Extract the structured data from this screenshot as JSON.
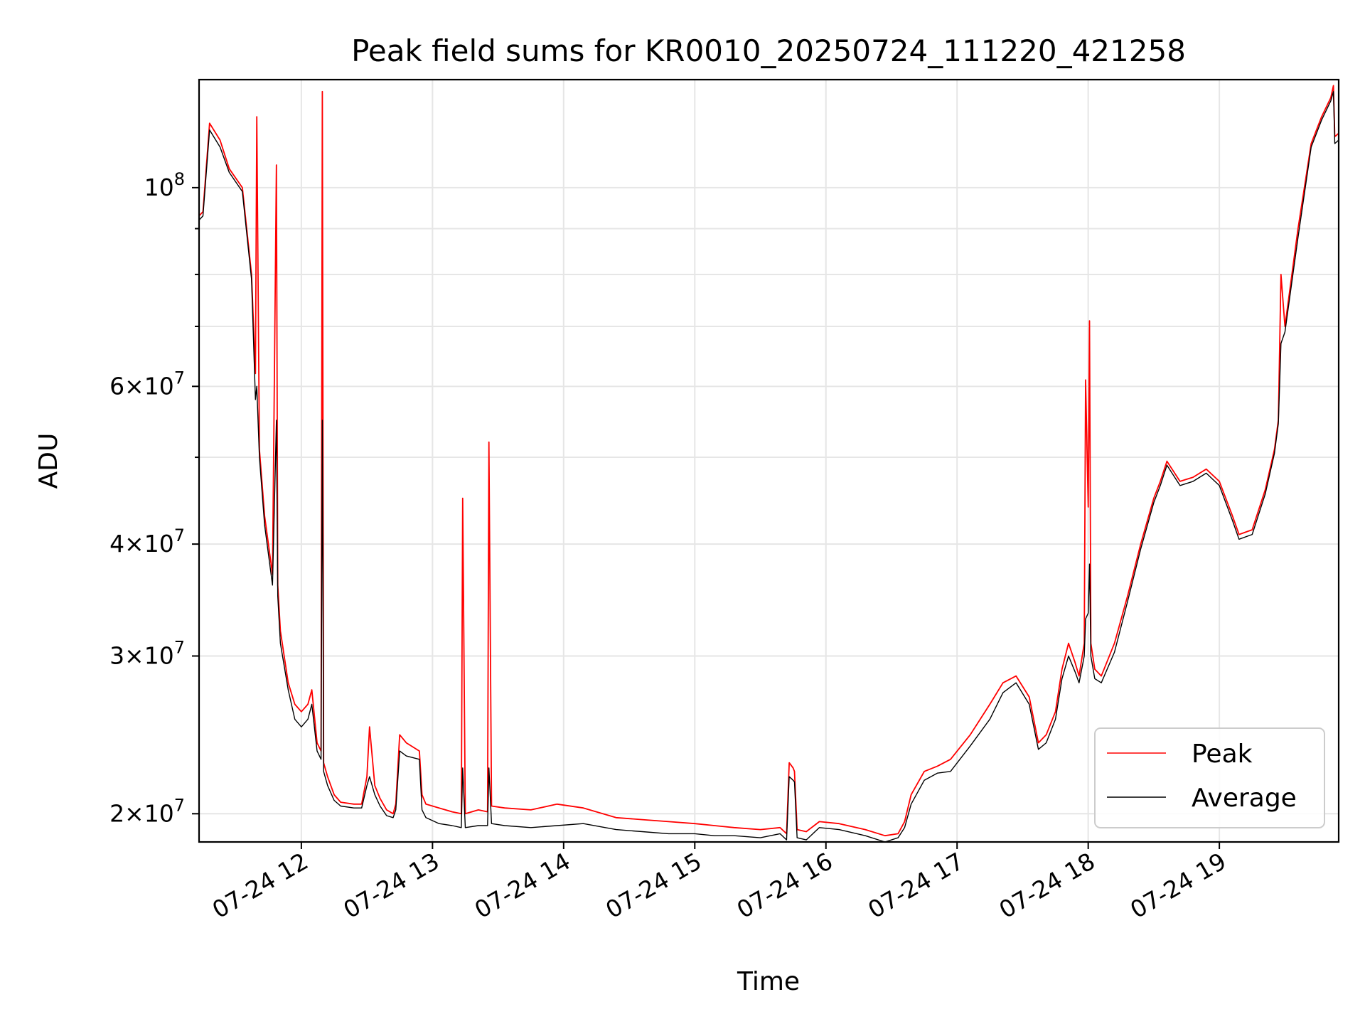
{
  "chart_data": {
    "type": "line",
    "title": "Peak field sums for KR0010_20250724_111220_421258",
    "xlabel": "Time",
    "ylabel": "ADU",
    "x_unit": "hours on 2025-07-24",
    "xlim": [
      11.22,
      19.91
    ],
    "ylim": [
      18600000,
      132000000
    ],
    "y_scale": "log",
    "grid": true,
    "legend_position": "lower-right",
    "x_ticks": [
      {
        "value": 12,
        "label": "07-24 12"
      },
      {
        "value": 13,
        "label": "07-24 13"
      },
      {
        "value": 14,
        "label": "07-24 14"
      },
      {
        "value": 15,
        "label": "07-24 15"
      },
      {
        "value": 16,
        "label": "07-24 16"
      },
      {
        "value": 17,
        "label": "07-24 17"
      },
      {
        "value": 18,
        "label": "07-24 18"
      },
      {
        "value": 19,
        "label": "07-24 19"
      }
    ],
    "y_major_ticks": [
      {
        "value": 20000000,
        "mantissa": "2",
        "base": "10",
        "exp": "7"
      },
      {
        "value": 30000000,
        "mantissa": "3",
        "base": "10",
        "exp": "7"
      },
      {
        "value": 40000000,
        "mantissa": "4",
        "base": "10",
        "exp": "7"
      },
      {
        "value": 60000000,
        "mantissa": "6",
        "base": "10",
        "exp": "7"
      },
      {
        "value": 100000000,
        "mantissa": "",
        "base": "10",
        "exp": "8"
      }
    ],
    "y_minor_grid": [
      50000000,
      70000000,
      80000000,
      90000000
    ],
    "series": [
      {
        "name": "Peak",
        "color": "#ff0000",
        "x": [
          11.22,
          11.25,
          11.3,
          11.38,
          11.45,
          11.55,
          11.62,
          11.65,
          11.66,
          11.68,
          11.72,
          11.78,
          11.81,
          11.82,
          11.84,
          11.9,
          11.95,
          12.0,
          12.05,
          12.08,
          12.12,
          12.15,
          12.16,
          12.17,
          12.2,
          12.25,
          12.3,
          12.4,
          12.46,
          12.5,
          12.52,
          12.56,
          12.6,
          12.65,
          12.7,
          12.72,
          12.75,
          12.8,
          12.9,
          12.92,
          12.95,
          13.05,
          13.15,
          13.22,
          13.23,
          13.25,
          13.35,
          13.42,
          13.43,
          13.45,
          13.55,
          13.75,
          13.95,
          14.15,
          14.4,
          14.6,
          14.8,
          15.0,
          15.15,
          15.3,
          15.5,
          15.65,
          15.7,
          15.72,
          15.75,
          15.76,
          15.78,
          15.85,
          15.95,
          16.1,
          16.3,
          16.45,
          16.55,
          16.6,
          16.65,
          16.75,
          16.85,
          16.95,
          17.1,
          17.25,
          17.35,
          17.45,
          17.55,
          17.62,
          17.68,
          17.75,
          17.8,
          17.85,
          17.9,
          17.93,
          17.97,
          17.98,
          18.0,
          18.01,
          18.02,
          18.05,
          18.1,
          18.2,
          18.3,
          18.4,
          18.5,
          18.55,
          18.6,
          18.7,
          18.8,
          18.9,
          19.0,
          19.1,
          19.15,
          19.25,
          19.35,
          19.42,
          19.45,
          19.47,
          19.5,
          19.6,
          19.7,
          19.78,
          19.85,
          19.87,
          19.88,
          19.91
        ],
        "y": [
          93000000,
          94000000,
          118000000,
          113000000,
          105000000,
          100000000,
          80000000,
          62000000,
          120000000,
          51000000,
          43000000,
          37000000,
          106000000,
          36000000,
          32000000,
          28000000,
          26500000,
          26000000,
          26500000,
          27500000,
          24000000,
          23500000,
          128000000,
          22800000,
          22000000,
          21000000,
          20600000,
          20500000,
          20500000,
          22000000,
          25000000,
          21500000,
          20800000,
          20200000,
          20000000,
          20500000,
          24500000,
          24000000,
          23500000,
          21000000,
          20500000,
          20300000,
          20100000,
          20000000,
          45000000,
          20000000,
          20200000,
          20100000,
          52000000,
          20400000,
          20300000,
          20200000,
          20500000,
          20300000,
          19800000,
          19700000,
          19600000,
          19500000,
          19400000,
          19300000,
          19200000,
          19300000,
          19000000,
          22800000,
          22500000,
          22300000,
          19200000,
          19100000,
          19600000,
          19500000,
          19200000,
          18900000,
          19000000,
          19600000,
          21000000,
          22300000,
          22600000,
          23000000,
          24500000,
          26500000,
          28000000,
          28500000,
          27000000,
          24000000,
          24500000,
          26000000,
          29000000,
          31000000,
          29500000,
          28500000,
          31000000,
          61000000,
          44000000,
          71000000,
          31000000,
          29000000,
          28500000,
          31000000,
          35000000,
          40000000,
          45000000,
          47000000,
          49500000,
          47000000,
          47500000,
          48500000,
          47000000,
          43000000,
          41000000,
          41500000,
          46000000,
          51000000,
          55000000,
          80000000,
          70000000,
          90000000,
          112000000,
          120000000,
          126000000,
          130000000,
          114000000,
          115000000
        ]
      },
      {
        "name": "Average",
        "color": "#000000",
        "x": [
          11.22,
          11.25,
          11.3,
          11.38,
          11.45,
          11.55,
          11.62,
          11.65,
          11.66,
          11.68,
          11.72,
          11.78,
          11.81,
          11.82,
          11.84,
          11.9,
          11.95,
          12.0,
          12.05,
          12.08,
          12.12,
          12.15,
          12.16,
          12.17,
          12.2,
          12.25,
          12.3,
          12.4,
          12.46,
          12.5,
          12.52,
          12.56,
          12.6,
          12.65,
          12.7,
          12.72,
          12.75,
          12.8,
          12.9,
          12.92,
          12.95,
          13.05,
          13.15,
          13.22,
          13.23,
          13.25,
          13.35,
          13.42,
          13.43,
          13.45,
          13.55,
          13.75,
          13.95,
          14.15,
          14.4,
          14.6,
          14.8,
          15.0,
          15.15,
          15.3,
          15.5,
          15.65,
          15.7,
          15.72,
          15.75,
          15.76,
          15.78,
          15.85,
          15.95,
          16.1,
          16.3,
          16.45,
          16.55,
          16.6,
          16.65,
          16.75,
          16.85,
          16.95,
          17.1,
          17.25,
          17.35,
          17.45,
          17.55,
          17.62,
          17.68,
          17.75,
          17.8,
          17.85,
          17.9,
          17.93,
          17.97,
          17.98,
          18.0,
          18.01,
          18.02,
          18.05,
          18.1,
          18.2,
          18.3,
          18.4,
          18.5,
          18.55,
          18.6,
          18.7,
          18.8,
          18.9,
          19.0,
          19.1,
          19.15,
          19.25,
          19.35,
          19.42,
          19.45,
          19.47,
          19.5,
          19.6,
          19.7,
          19.78,
          19.85,
          19.87,
          19.88,
          19.91
        ],
        "y": [
          92000000,
          93000000,
          116000000,
          111000000,
          104000000,
          99000000,
          79000000,
          58000000,
          60000000,
          50000000,
          42000000,
          36000000,
          55000000,
          35000000,
          31000000,
          27500000,
          25500000,
          25000000,
          25500000,
          26500000,
          23500000,
          23000000,
          55000000,
          22300000,
          21500000,
          20700000,
          20400000,
          20300000,
          20300000,
          21500000,
          22000000,
          21000000,
          20400000,
          19900000,
          19800000,
          20200000,
          23500000,
          23200000,
          23000000,
          20200000,
          19800000,
          19500000,
          19400000,
          19300000,
          22500000,
          19300000,
          19400000,
          19400000,
          22500000,
          19500000,
          19400000,
          19300000,
          19400000,
          19500000,
          19200000,
          19100000,
          19000000,
          19000000,
          18900000,
          18900000,
          18800000,
          19000000,
          18700000,
          22000000,
          21800000,
          21700000,
          18800000,
          18700000,
          19300000,
          19200000,
          18900000,
          18600000,
          18800000,
          19300000,
          20500000,
          21800000,
          22200000,
          22300000,
          23800000,
          25500000,
          27300000,
          28000000,
          26500000,
          23600000,
          24000000,
          25500000,
          28300000,
          30000000,
          28800000,
          28000000,
          30000000,
          33000000,
          33500000,
          38000000,
          30000000,
          28300000,
          28000000,
          30300000,
          34500000,
          39500000,
          44500000,
          46500000,
          49000000,
          46500000,
          47000000,
          48000000,
          46500000,
          42500000,
          40500000,
          41000000,
          45500000,
          50500000,
          54500000,
          67000000,
          69000000,
          88000000,
          111000000,
          119000000,
          125000000,
          128000000,
          112000000,
          113000000
        ]
      }
    ]
  }
}
